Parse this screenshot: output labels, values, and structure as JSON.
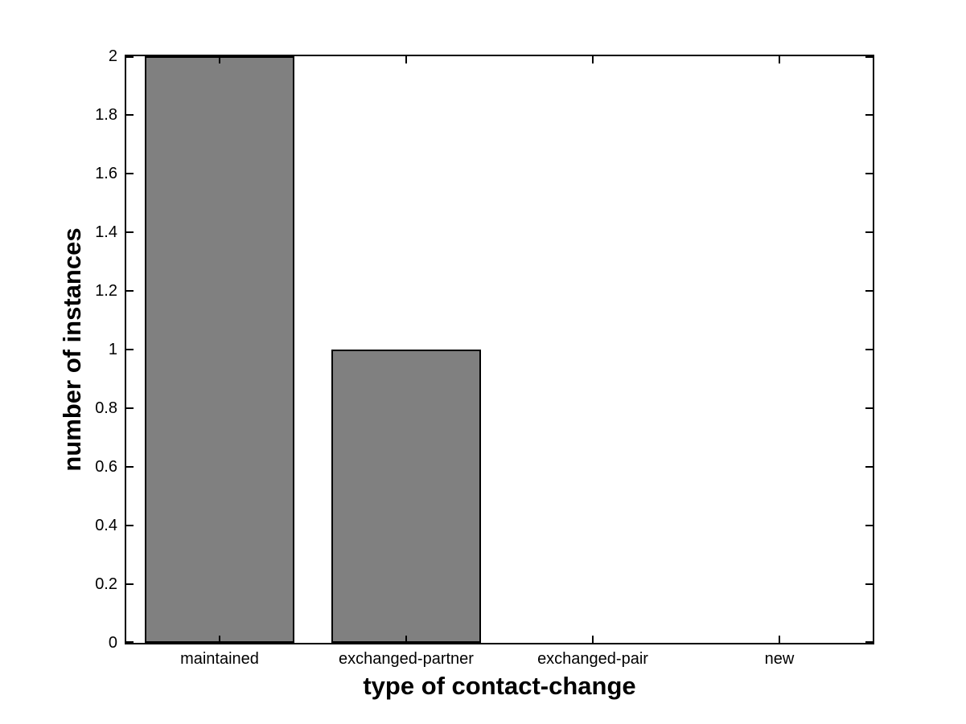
{
  "figure": {
    "background_color": "#ffffff"
  },
  "chart_data": {
    "type": "bar",
    "categories": [
      "maintained",
      "exchanged-partner",
      "exchanged-pair",
      "new"
    ],
    "values": [
      2,
      1,
      0,
      0
    ],
    "title": "",
    "xlabel": "type of contact-change",
    "ylabel": "number of instances",
    "ylim": [
      0,
      2
    ],
    "yticks": [
      0,
      0.2,
      0.4,
      0.6,
      0.8,
      1,
      1.2,
      1.4,
      1.6,
      1.8,
      2
    ],
    "ytick_labels": [
      "0",
      "0.2",
      "0.4",
      "0.6",
      "0.8",
      "1",
      "1.2",
      "1.4",
      "1.6",
      "1.8",
      "2"
    ],
    "bar_fill_color": "#808080",
    "bar_edge_color": "#000000",
    "axis_color": "#000000",
    "bar_width_fraction": 0.8,
    "grid": false,
    "legend_position": "none",
    "tick_direction": "in",
    "box": true
  }
}
